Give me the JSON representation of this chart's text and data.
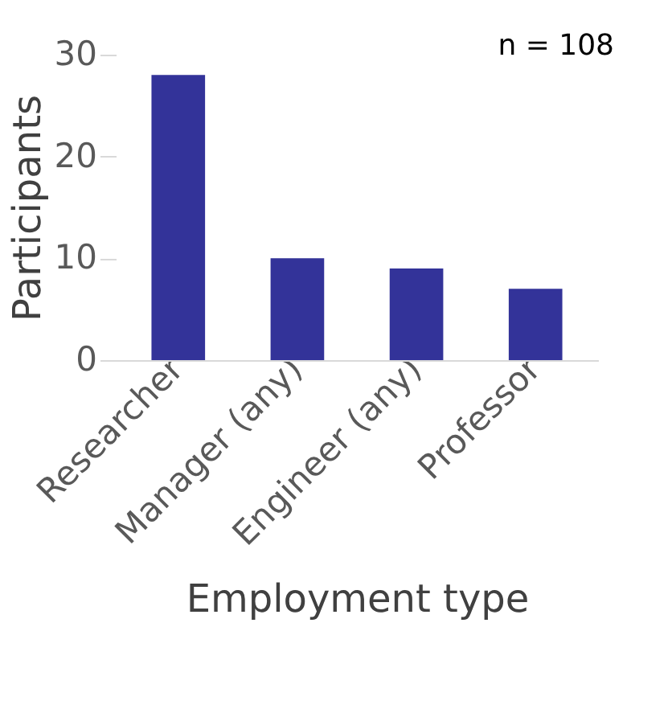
{
  "chart_data": {
    "type": "bar",
    "xlabel": "Employment type",
    "ylabel": "Participants",
    "categories": [
      "Researcher",
      "Manager (any)",
      "Engineer (any)",
      "Professor"
    ],
    "values": [
      28,
      10,
      9,
      7
    ],
    "color": "#333399",
    "ylim": [
      0,
      30
    ],
    "yticks": [
      0,
      10,
      20,
      30
    ],
    "grid": false,
    "annotations": [
      "n = 108"
    ]
  }
}
